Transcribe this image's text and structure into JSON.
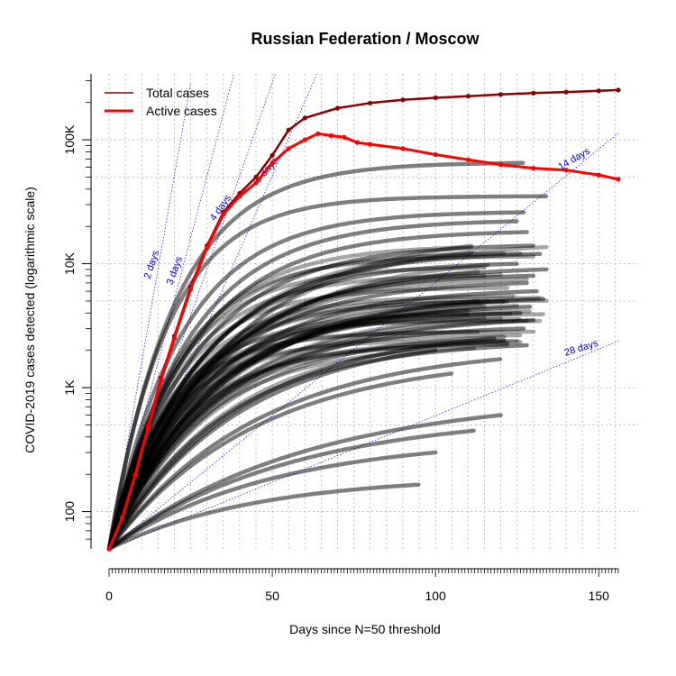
{
  "chart_data": {
    "type": "line",
    "title": "Russian Federation / Moscow",
    "xlabel": "Days since N=50 threshold",
    "ylabel": "COVID-2019 cases detected (logarithmic scale)",
    "log_y": true,
    "xlim": [
      0,
      156
    ],
    "ylim": [
      50,
      340000
    ],
    "x_ticks": [
      0,
      50,
      100,
      150
    ],
    "x_tick_labels": [
      "0",
      "50",
      "100",
      "150"
    ],
    "y_ticks": [
      100,
      1000,
      10000,
      100000
    ],
    "y_tick_labels": [
      "100",
      "1K",
      "10K",
      "100K"
    ],
    "grid": true,
    "legend_position": "top-left",
    "legend": [
      {
        "label": "Total cases",
        "color": "#8b0000"
      },
      {
        "label": "Active cases",
        "color": "#ff0000"
      }
    ],
    "reference_lines": [
      {
        "label": "2 days",
        "doubling_days": 2
      },
      {
        "label": "3 days",
        "doubling_days": 3
      },
      {
        "label": "4 days",
        "doubling_days": 4
      },
      {
        "label": "5 days",
        "doubling_days": 5
      },
      {
        "label": "14 days",
        "doubling_days": 14
      },
      {
        "label": "28 days",
        "doubling_days": 28
      }
    ],
    "series": [
      {
        "name": "Total cases",
        "color": "#8b0000",
        "points": [
          [
            0,
            50
          ],
          [
            4,
            90
          ],
          [
            8,
            200
          ],
          [
            12,
            500
          ],
          [
            16,
            1200
          ],
          [
            20,
            2600
          ],
          [
            25,
            6500
          ],
          [
            30,
            14000
          ],
          [
            35,
            26000
          ],
          [
            40,
            37000
          ],
          [
            45,
            50000
          ],
          [
            50,
            75000
          ],
          [
            55,
            120000
          ],
          [
            60,
            150000
          ],
          [
            70,
            180000
          ],
          [
            80,
            198000
          ],
          [
            90,
            210000
          ],
          [
            100,
            218000
          ],
          [
            110,
            225000
          ],
          [
            120,
            232000
          ],
          [
            130,
            238000
          ],
          [
            140,
            243000
          ],
          [
            150,
            248000
          ],
          [
            156,
            252000
          ]
        ]
      },
      {
        "name": "Active cases",
        "color": "#ff0000",
        "points": [
          [
            0,
            50
          ],
          [
            4,
            88
          ],
          [
            8,
            195
          ],
          [
            12,
            480
          ],
          [
            16,
            1150
          ],
          [
            20,
            2500
          ],
          [
            25,
            6200
          ],
          [
            30,
            13500
          ],
          [
            35,
            25000
          ],
          [
            40,
            35000
          ],
          [
            45,
            45000
          ],
          [
            50,
            65000
          ],
          [
            55,
            85000
          ],
          [
            60,
            100000
          ],
          [
            64,
            112000
          ],
          [
            68,
            108000
          ],
          [
            72,
            105000
          ],
          [
            76,
            95000
          ],
          [
            80,
            92000
          ],
          [
            90,
            85000
          ],
          [
            100,
            76000
          ],
          [
            110,
            69000
          ],
          [
            120,
            63000
          ],
          [
            130,
            59000
          ],
          [
            140,
            57000
          ],
          [
            150,
            52000
          ],
          [
            156,
            48000
          ]
        ]
      }
    ],
    "background_series": {
      "color": "#000000",
      "description_count": 80,
      "curves": [
        {
          "end_day": 127,
          "end_value": 65000,
          "k": 20
        },
        {
          "end_day": 134,
          "end_value": 35000,
          "k": 18
        },
        {
          "end_day": 127,
          "end_value": 26000,
          "k": 22
        },
        {
          "end_day": 125,
          "end_value": 22000,
          "k": 24
        },
        {
          "end_day": 128,
          "end_value": 18000,
          "k": 25
        },
        {
          "end_day": 130,
          "end_value": 14000,
          "k": 26
        },
        {
          "end_day": 132,
          "end_value": 12000,
          "k": 28
        },
        {
          "end_day": 125,
          "end_value": 10000,
          "k": 26
        },
        {
          "end_day": 134,
          "end_value": 9000,
          "k": 30
        },
        {
          "end_day": 130,
          "end_value": 8000,
          "k": 27
        },
        {
          "end_day": 128,
          "end_value": 7000,
          "k": 29
        },
        {
          "end_day": 131,
          "end_value": 6000,
          "k": 30
        },
        {
          "end_day": 133,
          "end_value": 5200,
          "k": 32
        },
        {
          "end_day": 129,
          "end_value": 4500,
          "k": 31
        },
        {
          "end_day": 126,
          "end_value": 4000,
          "k": 28
        },
        {
          "end_day": 130,
          "end_value": 3500,
          "k": 33
        },
        {
          "end_day": 127,
          "end_value": 3000,
          "k": 30
        },
        {
          "end_day": 128,
          "end_value": 2200,
          "k": 35
        },
        {
          "end_day": 118,
          "end_value": 2500,
          "k": 40
        },
        {
          "end_day": 100,
          "end_value": 2000,
          "k": 40
        },
        {
          "end_day": 120,
          "end_value": 1700,
          "k": 45
        },
        {
          "end_day": 105,
          "end_value": 1300,
          "k": 45
        },
        {
          "end_day": 120,
          "end_value": 600,
          "k": 60
        },
        {
          "end_day": 112,
          "end_value": 450,
          "k": 55
        },
        {
          "end_day": 100,
          "end_value": 300,
          "k": 50
        },
        {
          "end_day": 95,
          "end_value": 165,
          "k": 45
        }
      ]
    }
  }
}
